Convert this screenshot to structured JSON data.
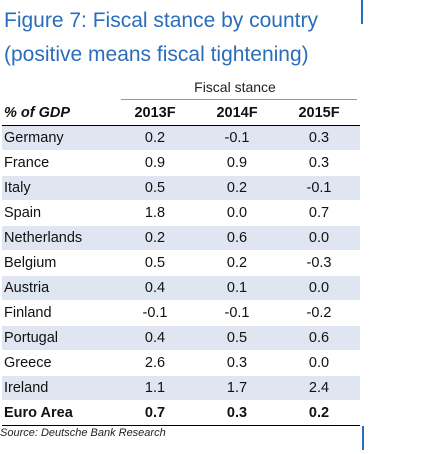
{
  "title": {
    "line1": "Figure 7: Fiscal stance by country",
    "line2": "(positive means fiscal tightening)"
  },
  "accent_color": "#2a6ebb",
  "shade_color": "#dfe6f1",
  "chart_data": {
    "type": "table",
    "group_header": "Fiscal stance",
    "row_header": "% of GDP",
    "columns": [
      "2013F",
      "2014F",
      "2015F"
    ],
    "rows": [
      {
        "label": "Germany",
        "values": [
          "0.2",
          "-0.1",
          "0.3"
        ]
      },
      {
        "label": "France",
        "values": [
          "0.9",
          "0.9",
          "0.3"
        ]
      },
      {
        "label": "Italy",
        "values": [
          "0.5",
          "0.2",
          "-0.1"
        ]
      },
      {
        "label": "Spain",
        "values": [
          "1.8",
          "0.0",
          "0.7"
        ]
      },
      {
        "label": "Netherlands",
        "values": [
          "0.2",
          "0.6",
          "0.0"
        ]
      },
      {
        "label": "Belgium",
        "values": [
          "0.5",
          "0.2",
          "-0.3"
        ]
      },
      {
        "label": "Austria",
        "values": [
          "0.4",
          "0.1",
          "0.0"
        ]
      },
      {
        "label": "Finland",
        "values": [
          "-0.1",
          "-0.1",
          "-0.2"
        ]
      },
      {
        "label": "Portugal",
        "values": [
          "0.4",
          "0.5",
          "0.6"
        ]
      },
      {
        "label": "Greece",
        "values": [
          "2.6",
          "0.3",
          "0.0"
        ]
      },
      {
        "label": "Ireland",
        "values": [
          "1.1",
          "1.7",
          "2.4"
        ]
      }
    ],
    "total": {
      "label": "Euro Area",
      "values": [
        "0.7",
        "0.3",
        "0.2"
      ]
    }
  },
  "source": "Source: Deutsche Bank Research"
}
